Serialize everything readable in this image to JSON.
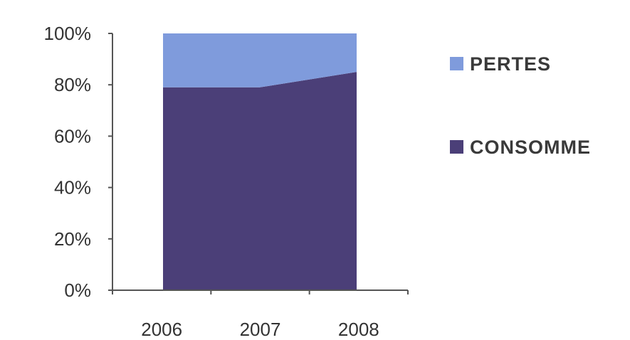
{
  "chart_data": {
    "type": "area",
    "stacked": true,
    "percent": true,
    "categories": [
      "2006",
      "2007",
      "2008"
    ],
    "series": [
      {
        "name": "CONSOMME",
        "values": [
          79,
          79,
          85
        ],
        "color": "#4b3f78"
      },
      {
        "name": "PERTES",
        "values": [
          21,
          21,
          15
        ],
        "color": "#7f9bdc"
      }
    ],
    "ylim": [
      0,
      100
    ],
    "yticks": [
      "0%",
      "20%",
      "40%",
      "60%",
      "80%",
      "100%"
    ],
    "grid": false,
    "legend": {
      "placement": "right",
      "order": [
        "PERTES",
        "CONSOMME"
      ]
    },
    "title": "",
    "xlabel": "",
    "ylabel": ""
  }
}
